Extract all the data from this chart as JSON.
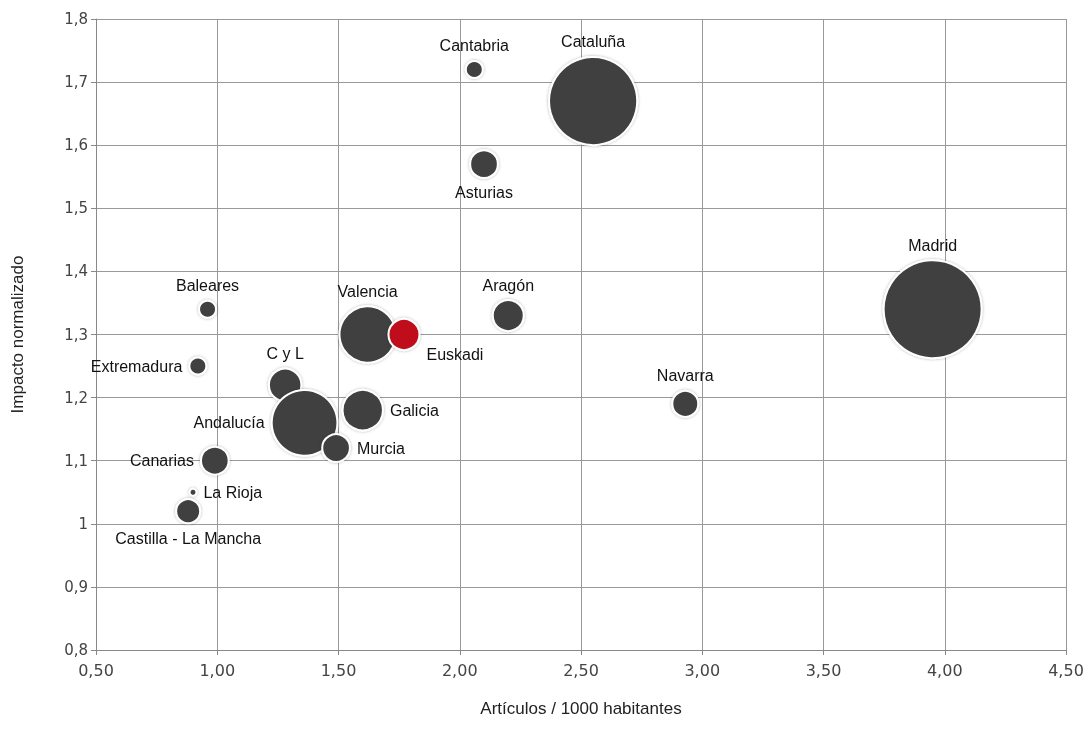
{
  "chart_data": {
    "type": "bubble",
    "xlabel": "Artículos / 1000 habitantes",
    "ylabel": "Impacto normalizado",
    "xlim": [
      0.5,
      4.5
    ],
    "xticks": [
      {
        "value": 0.5,
        "label": "0,50"
      },
      {
        "value": 1,
        "label": "1,00"
      },
      {
        "value": 1.5,
        "label": "1,50"
      },
      {
        "value": 2,
        "label": "2,00"
      },
      {
        "value": 2.5,
        "label": "2,50"
      },
      {
        "value": 3,
        "label": "3,00"
      },
      {
        "value": 3.5,
        "label": "3,50"
      },
      {
        "value": 4,
        "label": "4,00"
      },
      {
        "value": 4.5,
        "label": "4,50"
      }
    ],
    "ylim": [
      0.8,
      1.8
    ],
    "yticks": [
      {
        "value": 0.8,
        "label": "0,8"
      },
      {
        "value": 0.9,
        "label": "0,9"
      },
      1,
      {
        "value": 1.1,
        "label": "1,1"
      },
      {
        "value": 1.2,
        "label": "1,2"
      },
      {
        "value": 1.3,
        "label": "1,3"
      },
      {
        "value": 1.4,
        "label": "1,4"
      },
      {
        "value": 1.5,
        "label": "1,5"
      },
      {
        "value": 1.6,
        "label": "1,6"
      },
      {
        "value": 1.7,
        "label": "1,7"
      },
      {
        "value": 1.8,
        "label": "1,8"
      }
    ],
    "grid": true,
    "marker": "circle",
    "series": [
      {
        "name": "Cantabria",
        "color": "#404040",
        "x": [
          2.06
        ],
        "values": [
          1.72
        ],
        "sizes": [
          0.03
        ]
      },
      {
        "name": "Cataluña",
        "color": "#404040",
        "x": [
          2.55
        ],
        "values": [
          1.67
        ],
        "sizes": [
          0.81
        ]
      },
      {
        "name": "Asturias",
        "color": "#404040",
        "x": [
          2.1
        ],
        "values": [
          1.57
        ],
        "sizes": [
          0.08
        ]
      },
      {
        "name": "Madrid",
        "color": "#404040",
        "x": [
          3.95
        ],
        "values": [
          1.34
        ],
        "sizes": [
          1
        ]
      },
      {
        "name": "Baleares",
        "color": "#404040",
        "x": [
          0.96
        ],
        "values": [
          1.34
        ],
        "sizes": [
          0.03
        ]
      },
      {
        "name": "Valencia",
        "color": "#404040",
        "x": [
          1.62
        ],
        "values": [
          1.3
        ],
        "sizes": [
          0.33
        ]
      },
      {
        "name": "Aragón",
        "color": "#404040",
        "x": [
          2.2
        ],
        "values": [
          1.33
        ],
        "sizes": [
          0.1
        ]
      },
      {
        "name": "Extremadura",
        "color": "#404040",
        "x": [
          0.92
        ],
        "values": [
          1.25
        ],
        "sizes": [
          0.03
        ]
      },
      {
        "name": "C y L",
        "color": "#404040",
        "x": [
          1.28
        ],
        "values": [
          1.22
        ],
        "sizes": [
          0.11
        ]
      },
      {
        "name": "Euskadi",
        "color": "#c0101e",
        "x": [
          1.77
        ],
        "values": [
          1.3
        ],
        "sizes": [
          0.1
        ]
      },
      {
        "name": "Andalucía",
        "color": "#404040",
        "x": [
          1.36
        ],
        "values": [
          1.16
        ],
        "sizes": [
          0.45
        ]
      },
      {
        "name": "Galicia",
        "color": "#404040",
        "x": [
          1.6
        ],
        "values": [
          1.18
        ],
        "sizes": [
          0.17
        ]
      },
      {
        "name": "Navarra",
        "color": "#404040",
        "x": [
          2.93
        ],
        "values": [
          1.19
        ],
        "sizes": [
          0.07
        ]
      },
      {
        "name": "Murcia",
        "color": "#404040",
        "x": [
          1.49
        ],
        "values": [
          1.12
        ],
        "sizes": [
          0.08
        ]
      },
      {
        "name": "Canarias",
        "color": "#404040",
        "x": [
          0.99
        ],
        "values": [
          1.1
        ],
        "sizes": [
          0.08
        ]
      },
      {
        "name": "La Rioja",
        "color": "#404040",
        "x": [
          0.9
        ],
        "values": [
          1.05
        ],
        "sizes": [
          0.005
        ]
      },
      {
        "name": "Castilla - La Mancha",
        "color": "#404040",
        "x": [
          0.88
        ],
        "values": [
          1.02
        ],
        "sizes": [
          0.06
        ]
      }
    ]
  }
}
